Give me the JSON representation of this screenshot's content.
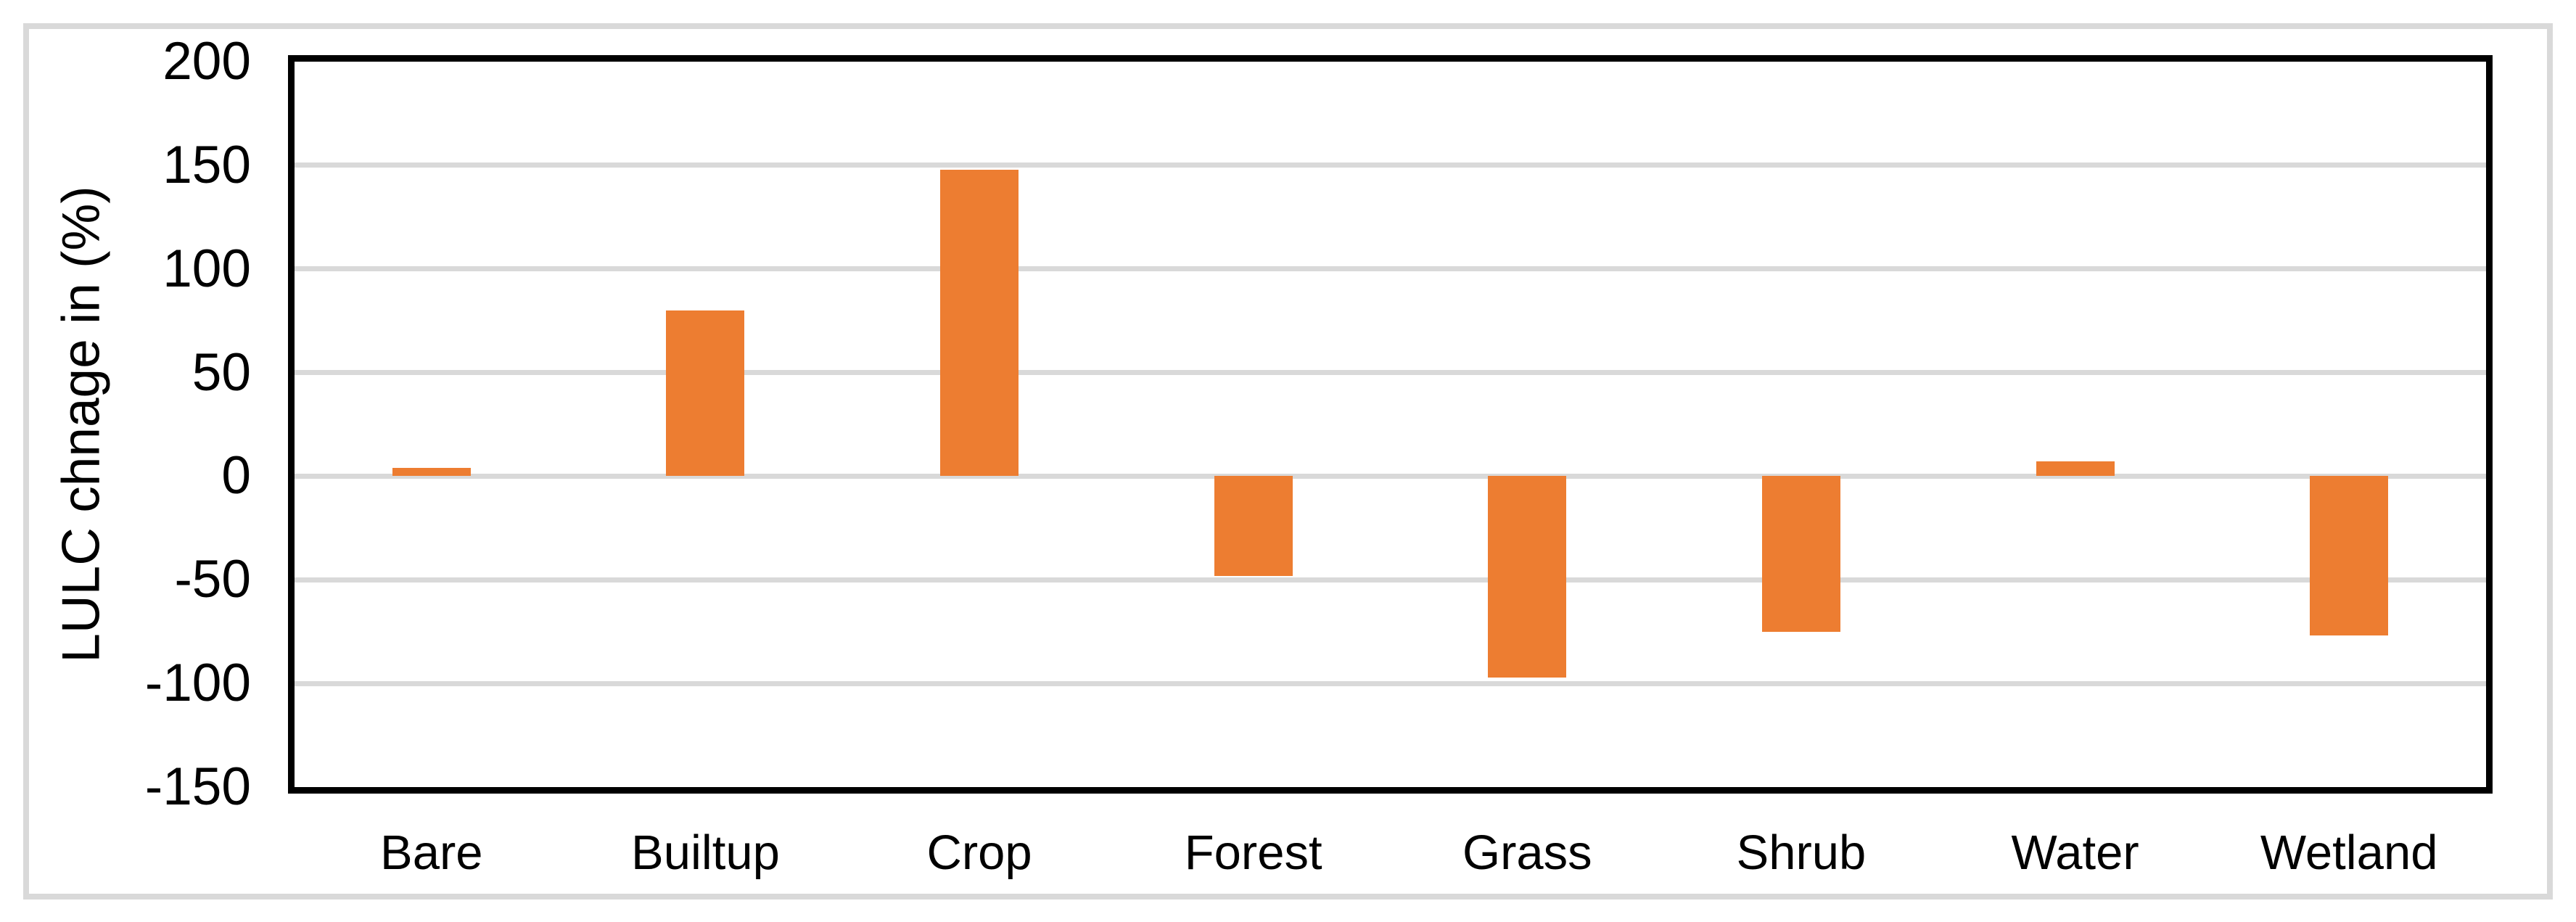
{
  "figure": {
    "background_color": "#FFFFFF",
    "outer_border_color": "#D9D9D9"
  },
  "chart_data": {
    "type": "bar",
    "title": "",
    "categories": [
      "Bare",
      "Builtup",
      "Crop",
      "Forest",
      "Grass",
      "Shrub",
      "Water",
      "Wetland"
    ],
    "values": [
      4,
      80,
      148,
      -48,
      -97,
      -75,
      7,
      -77
    ],
    "xlabel": "",
    "ylabel": "LULC chnage in (%)",
    "ylim": [
      -150,
      200
    ],
    "ytick_interval": 50,
    "yticks": [
      200,
      150,
      100,
      50,
      0,
      -50,
      -100,
      -150
    ],
    "grid": true,
    "legend": false,
    "bar_color": "#ED7D31",
    "gridline_color": "#D9D9D9",
    "axis_box_color": "#000000",
    "label_color": "#000000"
  }
}
